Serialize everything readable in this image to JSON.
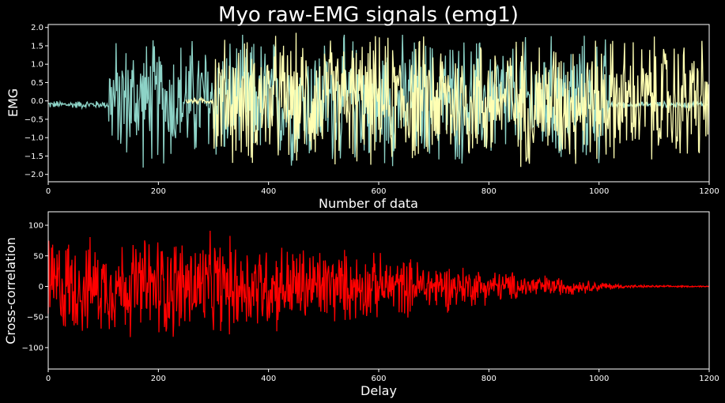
{
  "chart_data": [
    {
      "type": "line",
      "title": "Myo raw-EMG signals (emg1)",
      "xlabel": "Number of data",
      "ylabel": "EMG",
      "xlim": [
        0,
        1200
      ],
      "ylim": [
        -2.2,
        2.08
      ],
      "xticks": [
        0,
        200,
        400,
        600,
        800,
        1000,
        1200
      ],
      "xtick_labels": [
        "0",
        "200",
        "400",
        "600",
        "800",
        "1000",
        "1200"
      ],
      "yticks": [
        -2.0,
        -1.5,
        -1.0,
        -0.5,
        0.0,
        0.5,
        1.0,
        1.5,
        2.0
      ],
      "ytick_labels": [
        "−2.0",
        "−1.5",
        "−1.0",
        "−0.5",
        "0.0",
        "0.5",
        "1.0",
        "1.5",
        "2.0"
      ],
      "grid": false,
      "series": [
        {
          "color": "#8dd3c7",
          "segments": [
            {
              "x0": 0,
              "x1": 110,
              "amplitude": 0.12,
              "center": -0.1
            },
            {
              "x0": 110,
              "x1": 170,
              "amplitude": 1.9,
              "center": 0.0,
              "clip": [
                -2.0,
                1.8
              ]
            },
            {
              "x0": 170,
              "x1": 300,
              "amplitude": 2.0,
              "center": 0.0,
              "clip": [
                -2.0,
                1.8
              ]
            },
            {
              "x0": 300,
              "x1": 1020,
              "amplitude": 2.0,
              "center": 0.0,
              "clip": [
                -2.0,
                1.8
              ]
            },
            {
              "x0": 1020,
              "x1": 1200,
              "amplitude": 0.1,
              "center": -0.1
            }
          ]
        },
        {
          "color": "#ffffb3",
          "segments": [
            {
              "x0": 250,
              "x1": 300,
              "amplitude": 0.1,
              "center": 0.0
            },
            {
              "x0": 300,
              "x1": 1200,
              "amplitude": 2.0,
              "center": 0.0,
              "clip": [
                -2.0,
                1.9
              ]
            }
          ]
        }
      ]
    },
    {
      "type": "line",
      "title": "",
      "xlabel": "Delay",
      "ylabel": "Cross-correlation",
      "xlim": [
        0,
        1200
      ],
      "ylim": [
        -135,
        122
      ],
      "xticks": [
        0,
        200,
        400,
        600,
        800,
        1000,
        1200
      ],
      "xtick_labels": [
        "0",
        "200",
        "400",
        "600",
        "800",
        "1000",
        "1200"
      ],
      "yticks": [
        -100,
        -50,
        0,
        50,
        100
      ],
      "ytick_labels": [
        "−100",
        "−50",
        "0",
        "50",
        "100"
      ],
      "grid": false,
      "series": [
        {
          "color": "#ff0000",
          "envelope": [
            [
              0,
              100
            ],
            [
              100,
              85
            ],
            [
              200,
              100
            ],
            [
              300,
              95
            ],
            [
              400,
              85
            ],
            [
              500,
              75
            ],
            [
              600,
              60
            ],
            [
              700,
              50
            ],
            [
              800,
              32
            ],
            [
              900,
              22
            ],
            [
              950,
              15
            ],
            [
              1000,
              10
            ],
            [
              1050,
              3
            ],
            [
              1100,
              2
            ],
            [
              1200,
              1
            ]
          ]
        }
      ]
    }
  ]
}
